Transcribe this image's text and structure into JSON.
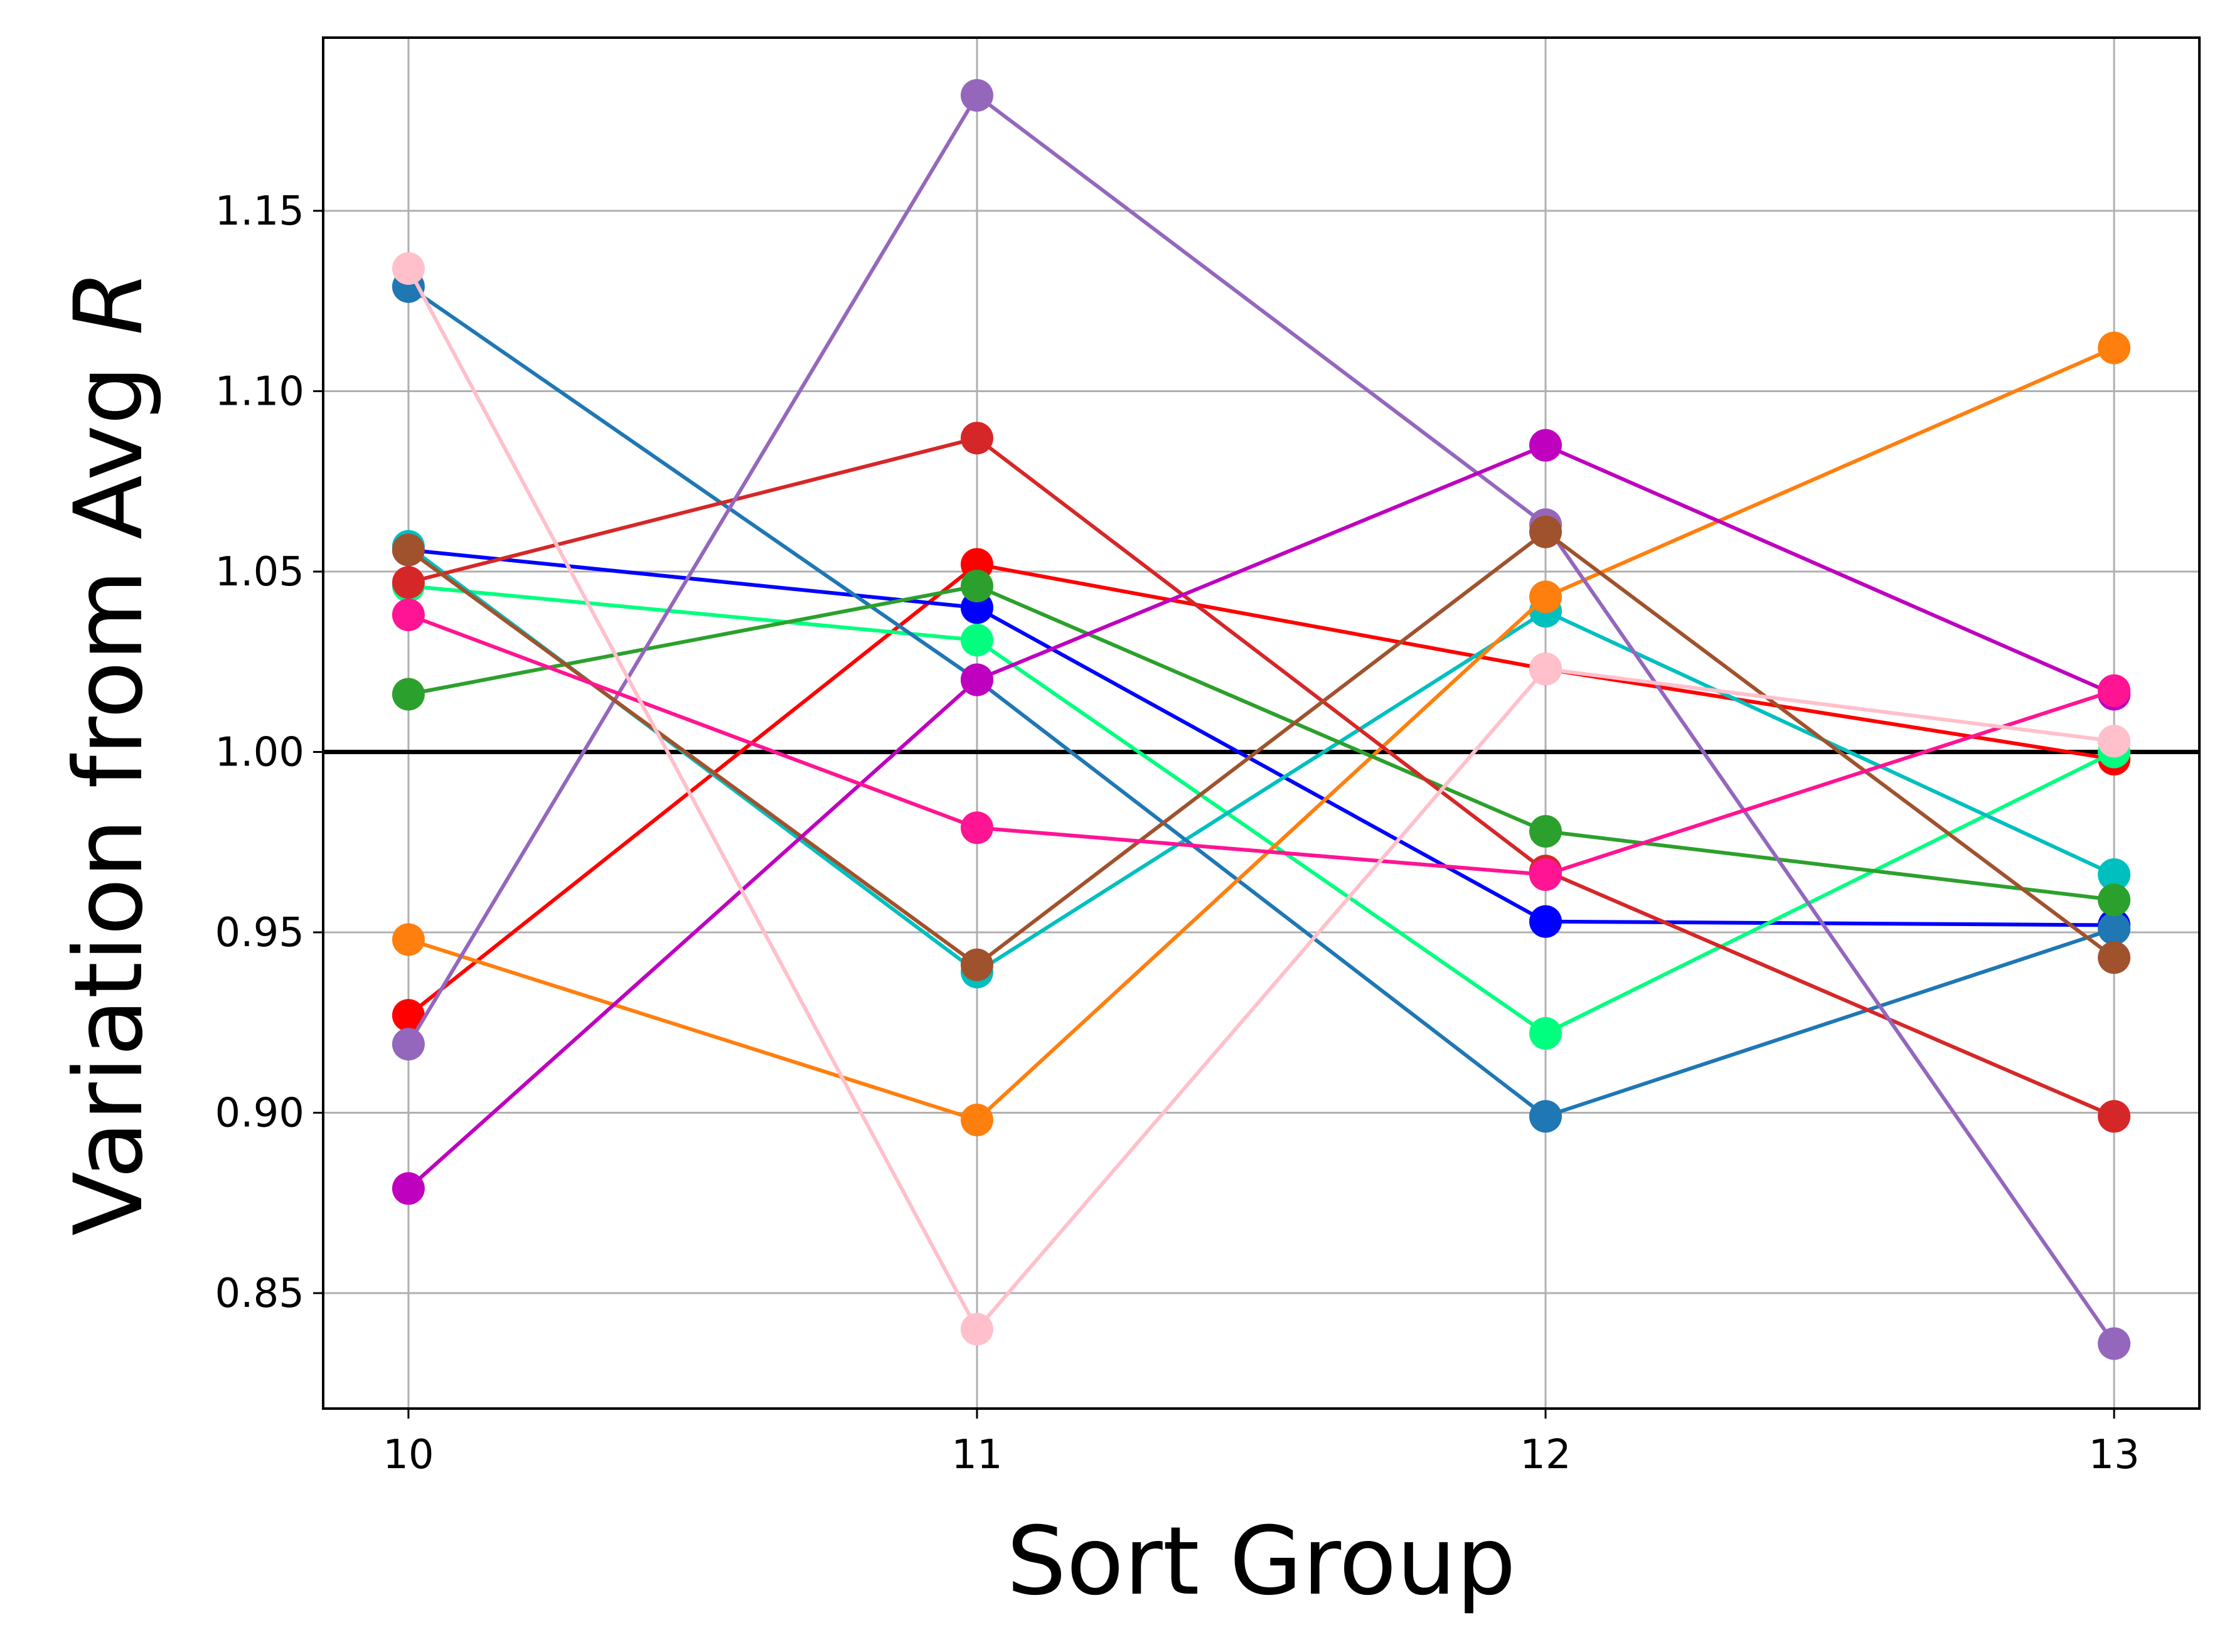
{
  "chart_data": {
    "type": "line",
    "title": "",
    "xlabel": "Sort Group",
    "ylabel_text": "Variation from Avg ",
    "ylabel_var": "R",
    "x": [
      10,
      11,
      12,
      13
    ],
    "x_ticks": [
      "10",
      "11",
      "12",
      "13"
    ],
    "y_ticks": [
      "0.85",
      "0.90",
      "0.95",
      "1.00",
      "1.05",
      "1.10",
      "1.15"
    ],
    "xlim": [
      9.85,
      13.15
    ],
    "ylim": [
      0.818,
      1.198
    ],
    "grid": true,
    "legend": "none",
    "reference_line": {
      "y": 1.0,
      "color": "#000000"
    },
    "series": [
      {
        "color": "#ff0000",
        "values": [
          0.927,
          1.052,
          1.023,
          0.998
        ]
      },
      {
        "color": "#0000ff",
        "values": [
          1.056,
          1.04,
          0.953,
          0.952
        ]
      },
      {
        "color": "#00ff7f",
        "values": [
          1.046,
          1.031,
          0.922,
          1.0
        ]
      },
      {
        "color": "#00bfbf",
        "values": [
          1.057,
          0.939,
          1.039,
          0.966
        ]
      },
      {
        "color": "#1f77b4",
        "values": [
          1.129,
          1.02,
          0.899,
          0.951
        ]
      },
      {
        "color": "#ff7f0e",
        "values": [
          0.948,
          0.898,
          1.043,
          1.112
        ]
      },
      {
        "color": "#2ca02c",
        "values": [
          1.016,
          1.046,
          0.978,
          0.959
        ]
      },
      {
        "color": "#d62728",
        "values": [
          1.047,
          1.087,
          0.967,
          0.899
        ]
      },
      {
        "color": "#9467bd",
        "values": [
          0.919,
          1.182,
          1.063,
          0.836
        ]
      },
      {
        "color": "#a0522d",
        "values": [
          1.056,
          0.941,
          1.061,
          0.943
        ]
      },
      {
        "color": "#bf00bf",
        "values": [
          0.879,
          1.02,
          1.085,
          1.016
        ]
      },
      {
        "color": "#ff1493",
        "values": [
          1.038,
          0.979,
          0.966,
          1.017
        ]
      },
      {
        "color": "#ffc0cb",
        "values": [
          1.134,
          0.84,
          1.023,
          1.003
        ]
      }
    ]
  }
}
